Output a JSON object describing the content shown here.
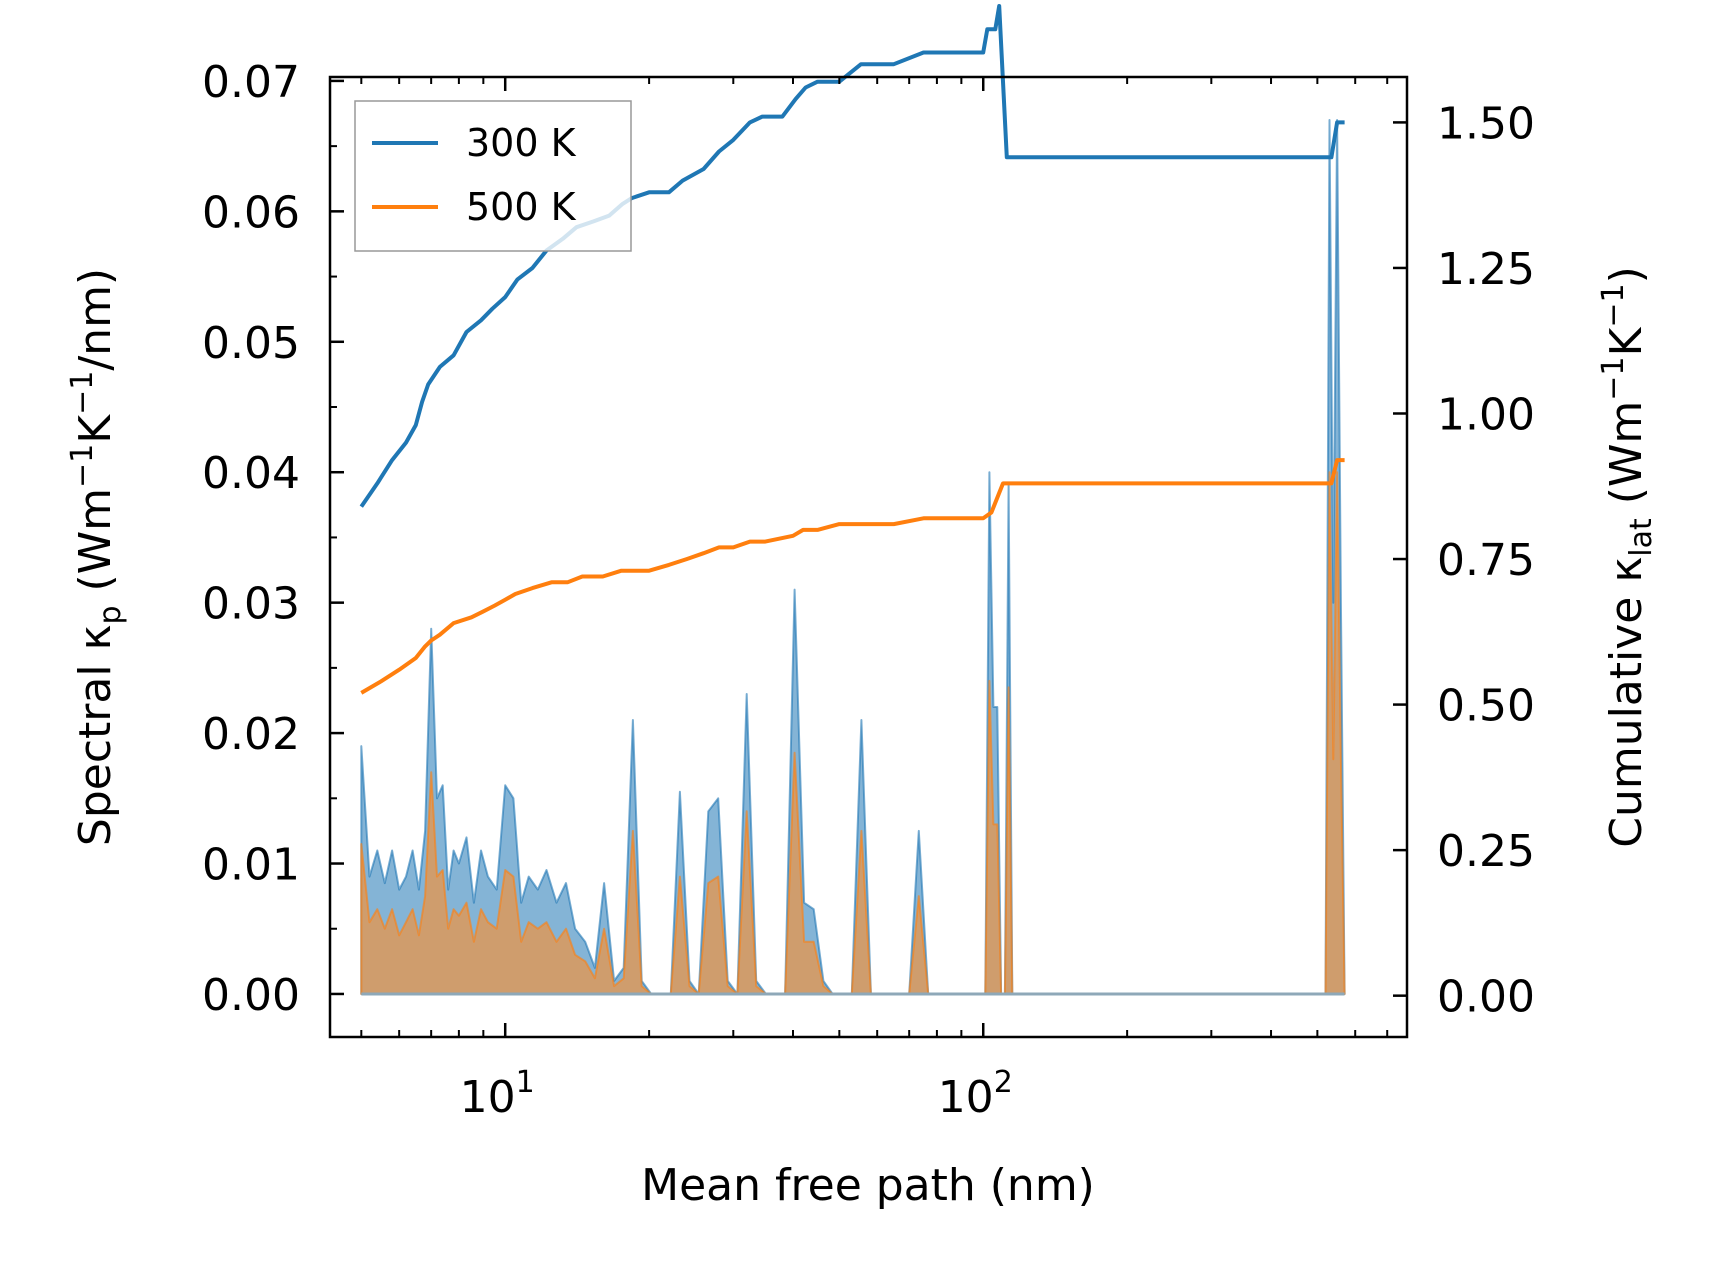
{
  "chart_data": {
    "type": "line",
    "title": "",
    "xlabel": "Mean free path (nm)",
    "xscale": "log",
    "xlim": [
      4.3,
      770
    ],
    "x_ticks": [
      {
        "value": 10,
        "base": "10",
        "exp": "1"
      },
      {
        "value": 100,
        "base": "10",
        "exp": "2"
      }
    ],
    "ylabel_left": {
      "pre": "Spectral κ",
      "sub": "p",
      "post": " (Wm",
      "sup1": "−1",
      "mid": "K",
      "sup2": "−1",
      "end": "/nm)"
    },
    "ylim_left": [
      -0.0033,
      0.0703
    ],
    "yticks_left": [
      "0.00",
      "0.01",
      "0.02",
      "0.03",
      "0.04",
      "0.05",
      "0.06",
      "0.07"
    ],
    "ylabel_right": {
      "pre": "Cumulative κ",
      "sub": "lat",
      "post": " (Wm",
      "sup1": "−1",
      "mid": "K",
      "sup2": "−1",
      "end": ")"
    },
    "ylim_right": [
      -0.071,
      1.578
    ],
    "yticks_right": [
      "0.00",
      "0.25",
      "0.50",
      "0.75",
      "1.00",
      "1.25",
      "1.50"
    ],
    "legend": {
      "position": "upper-left",
      "entries": [
        "300 K",
        "500 K"
      ]
    },
    "colors": {
      "300 K": "#1f77b4",
      "500 K": "#ff7f0e",
      "fill_300": "#1f77b4",
      "fill_500": "#e8954a"
    },
    "cumulative": [
      {
        "name": "300 K",
        "x": [
          5.0,
          5.4,
          5.8,
          6.2,
          6.5,
          6.7,
          6.9,
          7.3,
          7.8,
          8.3,
          8.9,
          9.4,
          10.0,
          10.6,
          11.4,
          12.2,
          13.2,
          14.1,
          15.3,
          16.5,
          17.6,
          18.4,
          20.0,
          22.0,
          23.5,
          26.0,
          28.0,
          30.0,
          32.5,
          34.5,
          38.0,
          40.5,
          42.5,
          45.0,
          50.0,
          55.5,
          65.0,
          75.0,
          90.0,
          100.0,
          102.0,
          106.0,
          108.0,
          112.0,
          200.0,
          300.0,
          400.0,
          500.0,
          535.0,
          550.0,
          570.0
        ],
        "y": [
          0.84,
          0.88,
          0.92,
          0.95,
          0.98,
          1.02,
          1.05,
          1.08,
          1.1,
          1.14,
          1.16,
          1.18,
          1.2,
          1.23,
          1.25,
          1.28,
          1.3,
          1.32,
          1.33,
          1.34,
          1.36,
          1.37,
          1.38,
          1.38,
          1.4,
          1.42,
          1.45,
          1.47,
          1.5,
          1.51,
          1.51,
          1.54,
          1.56,
          1.57,
          1.57,
          1.6,
          1.6,
          1.62,
          1.62,
          1.62,
          1.66,
          1.66,
          1.7,
          1.44,
          1.44,
          1.44,
          1.44,
          1.44,
          1.44,
          1.5,
          1.5
        ]
      },
      {
        "name": "500 K",
        "x": [
          5.0,
          5.5,
          6.0,
          6.5,
          6.8,
          7.0,
          7.3,
          7.8,
          8.5,
          9.0,
          9.5,
          10.0,
          10.5,
          11.4,
          12.5,
          13.5,
          14.5,
          16.0,
          17.5,
          18.5,
          20.0,
          22.0,
          24.0,
          26.0,
          28.0,
          30.0,
          32.5,
          35.0,
          40.0,
          42.0,
          45.0,
          50.0,
          55.0,
          65.0,
          75.0,
          90.0,
          100.0,
          104.0,
          110.0,
          200.0,
          300.0,
          400.0,
          500.0,
          535.0,
          550.0,
          570.0
        ],
        "y": [
          0.52,
          0.54,
          0.56,
          0.58,
          0.6,
          0.61,
          0.62,
          0.64,
          0.65,
          0.66,
          0.67,
          0.68,
          0.69,
          0.7,
          0.71,
          0.71,
          0.72,
          0.72,
          0.73,
          0.73,
          0.73,
          0.74,
          0.75,
          0.76,
          0.77,
          0.77,
          0.78,
          0.78,
          0.79,
          0.8,
          0.8,
          0.81,
          0.81,
          0.81,
          0.82,
          0.82,
          0.82,
          0.83,
          0.88,
          0.88,
          0.88,
          0.88,
          0.88,
          0.88,
          0.92,
          0.92
        ]
      }
    ],
    "spectral": [
      {
        "name": "300 K",
        "x": [
          5.0,
          5.2,
          5.4,
          5.6,
          5.8,
          6.0,
          6.2,
          6.4,
          6.6,
          6.8,
          7.0,
          7.2,
          7.4,
          7.6,
          7.8,
          8.0,
          8.3,
          8.6,
          8.9,
          9.2,
          9.6,
          10.0,
          10.4,
          10.8,
          11.2,
          11.7,
          12.2,
          12.8,
          13.4,
          14.0,
          14.7,
          15.4,
          16.1,
          16.9,
          17.7,
          18.5,
          19.3,
          20.2,
          21.2,
          22.2,
          23.2,
          24.3,
          25.4,
          26.6,
          27.9,
          29.2,
          30.6,
          32.0,
          33.5,
          35.1,
          36.8,
          38.5,
          40.3,
          42.2,
          44.2,
          46.3,
          48.4,
          50.7,
          53.1,
          55.6,
          58.2,
          61.0,
          63.8,
          66.8,
          70.0,
          73.3,
          76.7,
          80.3,
          84.1,
          88.1,
          92.2,
          96.6,
          101.0,
          103.0,
          105.0,
          107.0,
          109.0,
          111.0,
          113.0,
          115.0,
          120.0,
          200.0,
          300.0,
          400.0,
          500.0,
          520.0,
          530.0,
          540.0,
          550.0,
          560.0,
          570.0
        ],
        "y": [
          0.019,
          0.009,
          0.011,
          0.0085,
          0.011,
          0.008,
          0.009,
          0.011,
          0.008,
          0.0125,
          0.028,
          0.015,
          0.016,
          0.008,
          0.011,
          0.01,
          0.012,
          0.007,
          0.011,
          0.009,
          0.008,
          0.016,
          0.015,
          0.007,
          0.009,
          0.008,
          0.0095,
          0.007,
          0.0085,
          0.005,
          0.004,
          0.002,
          0.0085,
          0.001,
          0.002,
          0.021,
          0.001,
          0.0,
          0.0,
          0.0,
          0.0155,
          0.001,
          0.0,
          0.014,
          0.015,
          0.001,
          0.0,
          0.023,
          0.001,
          0.0,
          0.0,
          0.0,
          0.031,
          0.007,
          0.0065,
          0.001,
          0.0,
          0.0,
          0.0,
          0.021,
          0.0,
          0.0,
          0.0,
          0.0,
          0.0,
          0.0125,
          0.0,
          0.0,
          0.0,
          0.0,
          0.0,
          0.0,
          0.0,
          0.04,
          0.022,
          0.022,
          0.0,
          0.0,
          0.039,
          0.0,
          0.0,
          0.0,
          0.0,
          0.0,
          0.0,
          0.0,
          0.067,
          0.03,
          0.067,
          0.03,
          0.0
        ]
      },
      {
        "name": "500 K",
        "x": [
          5.0,
          5.2,
          5.4,
          5.6,
          5.8,
          6.0,
          6.2,
          6.4,
          6.6,
          6.8,
          7.0,
          7.2,
          7.4,
          7.6,
          7.8,
          8.0,
          8.3,
          8.6,
          8.9,
          9.2,
          9.6,
          10.0,
          10.4,
          10.8,
          11.2,
          11.7,
          12.2,
          12.8,
          13.4,
          14.0,
          14.7,
          15.4,
          16.1,
          16.9,
          17.7,
          18.5,
          19.3,
          20.2,
          21.2,
          22.2,
          23.2,
          24.3,
          25.4,
          26.6,
          27.9,
          29.2,
          30.6,
          32.0,
          33.5,
          35.1,
          36.8,
          38.5,
          40.3,
          42.2,
          44.2,
          46.3,
          48.4,
          50.7,
          53.1,
          55.6,
          58.2,
          61.0,
          63.8,
          66.8,
          70.0,
          73.3,
          76.7,
          80.3,
          84.1,
          88.1,
          92.2,
          96.6,
          101.0,
          103.0,
          105.0,
          107.0,
          109.0,
          111.0,
          113.0,
          115.0,
          120.0,
          200.0,
          300.0,
          400.0,
          500.0,
          520.0,
          530.0,
          540.0,
          550.0,
          560.0,
          570.0
        ],
        "y": [
          0.0115,
          0.0055,
          0.0065,
          0.005,
          0.0065,
          0.0045,
          0.0055,
          0.0065,
          0.0045,
          0.0075,
          0.017,
          0.009,
          0.0095,
          0.005,
          0.0065,
          0.006,
          0.007,
          0.004,
          0.0065,
          0.0055,
          0.005,
          0.0095,
          0.009,
          0.004,
          0.0055,
          0.005,
          0.0055,
          0.004,
          0.005,
          0.003,
          0.0025,
          0.0012,
          0.005,
          0.0006,
          0.0012,
          0.0125,
          0.0006,
          0.0,
          0.0,
          0.0,
          0.009,
          0.0006,
          0.0,
          0.0085,
          0.009,
          0.0006,
          0.0,
          0.014,
          0.0006,
          0.0,
          0.0,
          0.0,
          0.0185,
          0.004,
          0.004,
          0.0006,
          0.0,
          0.0,
          0.0,
          0.0125,
          0.0,
          0.0,
          0.0,
          0.0,
          0.0,
          0.0075,
          0.0,
          0.0,
          0.0,
          0.0,
          0.0,
          0.0,
          0.0,
          0.024,
          0.013,
          0.013,
          0.0,
          0.0,
          0.0235,
          0.0,
          0.0,
          0.0,
          0.0,
          0.0,
          0.0,
          0.0,
          0.04,
          0.018,
          0.04,
          0.018,
          0.0
        ]
      }
    ]
  }
}
